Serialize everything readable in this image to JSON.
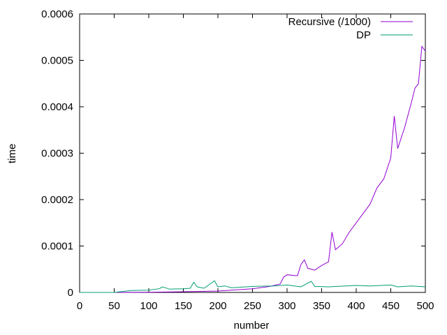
{
  "chart_data": {
    "type": "line",
    "xlabel": "number",
    "ylabel": "time",
    "xlim": [
      0,
      500
    ],
    "ylim": [
      0,
      0.0006
    ],
    "x_ticks": [
      "0",
      "50",
      "100",
      "150",
      "200",
      "250",
      "300",
      "350",
      "400",
      "450",
      "500"
    ],
    "y_ticks": [
      "0",
      "0.0001",
      "0.0002",
      "0.0003",
      "0.0004",
      "0.0005",
      "0.0006"
    ],
    "grid": false,
    "legend_position": "top-right",
    "series": [
      {
        "name": "Recursive (/1000)",
        "color": "#9400d3",
        "x": [
          0,
          50,
          100,
          150,
          200,
          250,
          275,
          290,
          295,
          300,
          315,
          320,
          325,
          330,
          340,
          350,
          360,
          365,
          370,
          380,
          390,
          400,
          410,
          420,
          430,
          440,
          450,
          455,
          460,
          470,
          480,
          485,
          490,
          495,
          500
        ],
        "y": [
          0,
          0,
          5e-07,
          1.5e-06,
          3e-06,
          8e-06,
          1.3e-05,
          1.8e-05,
          3.3e-05,
          3.8e-05,
          3.6e-05,
          6e-05,
          7e-05,
          5.2e-05,
          4.8e-05,
          5.8e-05,
          6.6e-05,
          0.00013,
          9.2e-05,
          0.000105,
          0.00013,
          0.00015,
          0.00017,
          0.00019,
          0.000225,
          0.000245,
          0.00029,
          0.00038,
          0.00031,
          0.000355,
          0.00041,
          0.00044,
          0.00045,
          0.00053,
          0.00052
        ]
      },
      {
        "name": "DP",
        "color": "#009e73",
        "x": [
          0,
          50,
          75,
          100,
          115,
          120,
          130,
          150,
          160,
          165,
          170,
          180,
          195,
          200,
          210,
          220,
          250,
          280,
          300,
          320,
          335,
          340,
          360,
          400,
          420,
          450,
          460,
          480,
          490,
          500
        ],
        "y": [
          0,
          0,
          4e-06,
          5e-06,
          8e-06,
          1.2e-05,
          7e-06,
          8e-06,
          9e-06,
          2.2e-05,
          1.2e-05,
          9e-06,
          2.5e-05,
          1.2e-05,
          1.4e-05,
          1e-05,
          1.3e-05,
          1.4e-05,
          1.6e-05,
          1.2e-05,
          2.4e-05,
          1.3e-05,
          1.2e-05,
          1.5e-05,
          1.4e-05,
          1.6e-05,
          1.2e-05,
          1.4e-05,
          1.3e-05,
          1.2e-05
        ]
      }
    ]
  }
}
